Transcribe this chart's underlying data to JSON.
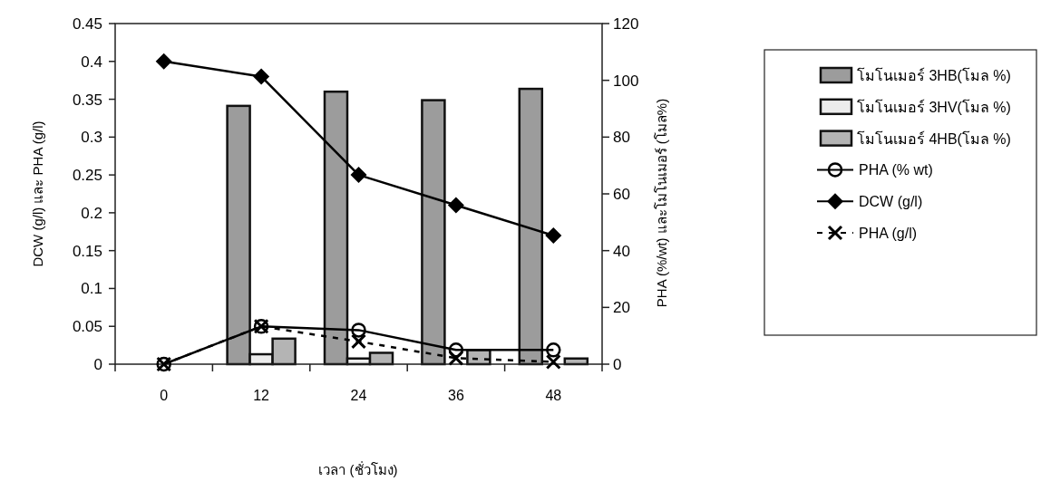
{
  "chart_data": {
    "type": "bar",
    "xlabel": "เวลา (ชั่วโมง)",
    "ylabel": "DCW (g/l) และ  PHA (g/l)",
    "y2label": "PHA (%/wt) และโมโนเมอร์ (โมล%)",
    "categories": [
      "0",
      "12",
      "24",
      "36",
      "48"
    ],
    "series": [
      {
        "name": "โมโนเมอร์ 3HB(โมล %)",
        "color": "#9c9c9c",
        "axis": "y2",
        "values": [
          0,
          91,
          96,
          93,
          97
        ]
      },
      {
        "name": "โมโนเมอร์ 3HV(โมล %)",
        "color": "#ececec",
        "axis": "y2",
        "values": [
          0,
          3.5,
          2,
          null,
          null
        ]
      },
      {
        "name": "โมโนเมอร์ 4HB(โมล %)",
        "color": "#b4b4b4",
        "axis": "y2",
        "values": [
          0,
          9,
          4,
          5,
          2
        ]
      },
      {
        "name": "PHA (% wt)",
        "type": "line",
        "color": "#000000",
        "axis": "y2",
        "marker": "circle",
        "line_style": "solid",
        "values": [
          0,
          13.3,
          12,
          5,
          5
        ]
      },
      {
        "name": "DCW (g/l)",
        "type": "line",
        "color": "#000000",
        "marker": "diamond",
        "line_style": "solid",
        "values": [
          0.4,
          0.38,
          0.25,
          0.21,
          0.17
        ]
      },
      {
        "name": "PHA  (g/l)",
        "type": "line",
        "color": "#000000",
        "marker": "cross",
        "line_style": "dashed",
        "values": [
          0,
          0.05,
          0.03,
          0.008,
          0.003
        ]
      }
    ],
    "ylim": [
      0,
      0.45
    ],
    "yticks": [
      0,
      0.05,
      0.1,
      0.15,
      0.2,
      0.25,
      0.3,
      0.35,
      0.4,
      0.45
    ],
    "y2lim": [
      0,
      120
    ],
    "y2ticks": [
      0,
      20,
      40,
      60,
      80,
      100,
      120
    ],
    "legend": "right"
  }
}
